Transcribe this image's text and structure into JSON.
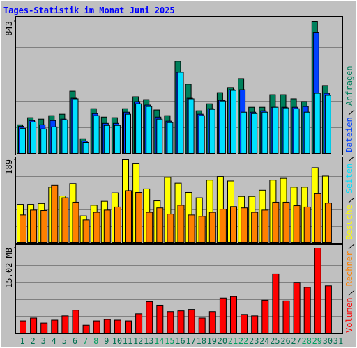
{
  "chart_data": [
    {
      "type": "bar",
      "title": "Tages-Statistik im Monat Juni 2025",
      "ylim": [
        0,
        843
      ],
      "yticks": [
        843
      ],
      "series": [
        {
          "name": "Anfragen",
          "color": "#00805c",
          "values": [
            186,
            231,
            222,
            244,
            253,
            399,
            98,
            288,
            235,
            231,
            288,
            364,
            346,
            280,
            244,
            590,
            444,
            275,
            319,
            390,
            422,
            479,
            297,
            297,
            377,
            377,
            351,
            333,
            843,
            435,
            null
          ]
        },
        {
          "name": "Dateien",
          "color": "#0040ff",
          "values": [
            177,
            213,
            186,
            213,
            222,
            355,
            84,
            257,
            195,
            195,
            266,
            333,
            311,
            235,
            209,
            519,
            355,
            253,
            288,
            342,
            408,
            408,
            266,
            275,
            297,
            297,
            297,
            302,
            772,
            386,
            null
          ]
        },
        {
          "name": "Seiten",
          "color": "#00e0ff",
          "values": [
            164,
            204,
            160,
            173,
            217,
            351,
            75,
            244,
            182,
            182,
            253,
            319,
            302,
            222,
            200,
            519,
            351,
            244,
            284,
            337,
            404,
            266,
            257,
            266,
            297,
            293,
            288,
            266,
            386,
            373,
            null
          ]
        }
      ]
    },
    {
      "type": "bar",
      "ylim": [
        0,
        189
      ],
      "yticks": [
        189
      ],
      "series": [
        {
          "name": "Besuche",
          "color": "#ffff00",
          "values": [
            88,
            88,
            90,
            127,
            107,
            135,
            62,
            86,
            95,
            114,
            189,
            181,
            123,
            96,
            149,
            136,
            115,
            103,
            143,
            151,
            141,
            106,
            106,
            120,
            143,
            147,
            127,
            127,
            171,
            152,
            null
          ]
        },
        {
          "name": "Rechner",
          "color": "#ff8000",
          "values": [
            64,
            75,
            74,
            131,
            103,
            93,
            53,
            70,
            75,
            82,
            119,
            115,
            70,
            80,
            66,
            86,
            64,
            61,
            70,
            77,
            83,
            80,
            70,
            75,
            93,
            93,
            85,
            82,
            112,
            91,
            null
          ]
        }
      ]
    },
    {
      "type": "bar",
      "ylim": [
        0,
        15.02
      ],
      "yticks": [
        {
          "value": 15.02,
          "label": "15.02 MB"
        }
      ],
      "categories": [
        "1",
        "2",
        "3",
        "4",
        "5",
        "6",
        "7",
        "8",
        "9",
        "10",
        "11",
        "12",
        "13",
        "14",
        "15",
        "16",
        "17",
        "18",
        "19",
        "20",
        "21",
        "22",
        "23",
        "24",
        "25",
        "26",
        "27",
        "28",
        "29",
        "30",
        "31"
      ],
      "category_color": "#007050",
      "highlight_color": "#00a060",
      "highlight_indices": [
        6,
        7,
        13,
        14,
        20,
        21,
        27,
        28
      ],
      "series": [
        {
          "name": "Volumen",
          "color": "#ff0000",
          "values": [
            2.25,
            2.75,
            1.88,
            2.38,
            3.13,
            4.13,
            1.5,
            2.25,
            2.5,
            2.38,
            2.25,
            3.5,
            5.63,
            5.01,
            3.88,
            4.01,
            4.26,
            2.75,
            3.88,
            6.26,
            6.51,
            3.38,
            3.13,
            5.88,
            10.51,
            5.76,
            9.01,
            8.14,
            15.02,
            8.39,
            null
          ]
        }
      ]
    }
  ]
}
